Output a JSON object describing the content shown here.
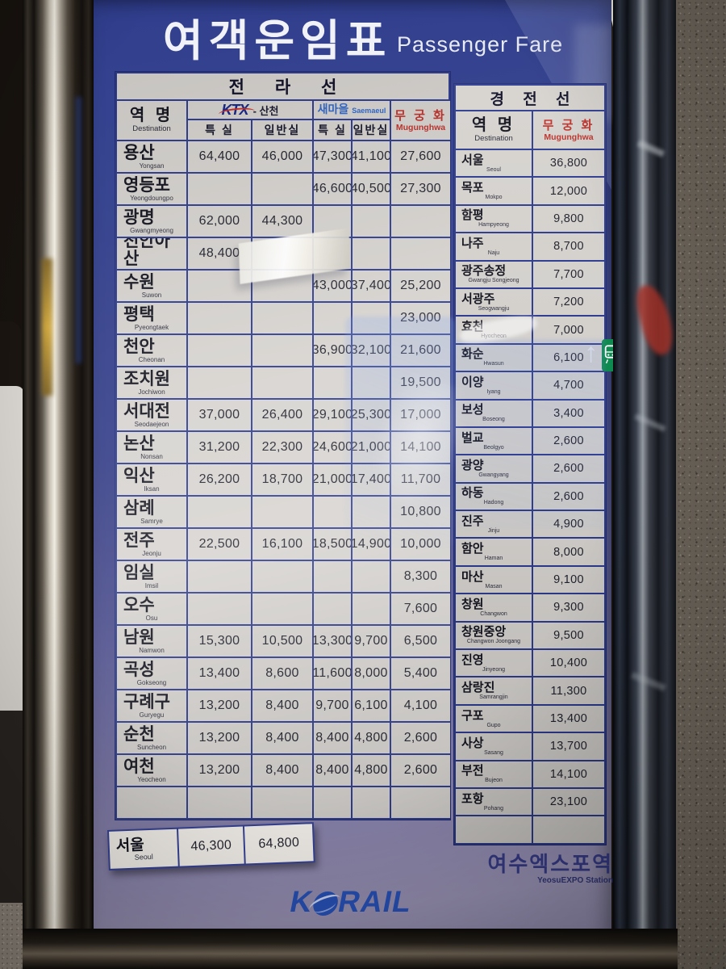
{
  "title": {
    "kr": "여객운임표",
    "en": "Passenger Fare"
  },
  "colors": {
    "board_navy": "#303e8e",
    "grid_navy": "#2e3c90",
    "table_bg": "#d6d3cf",
    "mugunghwa_red": "#bf2f28",
    "saemaeul_blue": "#2f66c8",
    "ktx_navy": "#17268a",
    "korail_blue": "#1d48ac",
    "train_sign_green": "#0e8a50"
  },
  "left_table": {
    "line_name": "전 라 선",
    "headers": {
      "station_kr": "역 명",
      "station_en": "Destination",
      "ktx": "KTX",
      "ktx_suffix": "- 산천",
      "special": "특 실",
      "standard": "일반실",
      "saemaeul_kr": "새마을",
      "saemaeul_en": "Saemaeul",
      "mugunghwa_kr": "무 궁 화",
      "mugunghwa_en": "Mugunghwa"
    },
    "rows": [
      {
        "kr": "용산",
        "en": "Yongsan",
        "f": [
          "64,400",
          "46,000",
          "47,300",
          "41,100",
          "27,600"
        ]
      },
      {
        "kr": "영등포",
        "en": "Yeongdoungpo",
        "f": [
          "",
          "",
          "46,600",
          "40,500",
          "27,300"
        ]
      },
      {
        "kr": "광명",
        "en": "Gwangmyeong",
        "f": [
          "62,000",
          "44,300",
          "",
          "",
          ""
        ]
      },
      {
        "kr": "천안아산",
        "en": "Cheonan Asan",
        "f": [
          "48,400",
          "",
          "",
          "",
          ""
        ]
      },
      {
        "kr": "수원",
        "en": "Suwon",
        "f": [
          "",
          "",
          "43,000",
          "37,400",
          "25,200"
        ]
      },
      {
        "kr": "평택",
        "en": "Pyeongtaek",
        "f": [
          "",
          "",
          "",
          "",
          "23,000"
        ]
      },
      {
        "kr": "천안",
        "en": "Cheonan",
        "f": [
          "",
          "",
          "36,900",
          "32,100",
          "21,600"
        ]
      },
      {
        "kr": "조치원",
        "en": "Jochiwon",
        "f": [
          "",
          "",
          "",
          "",
          "19,500"
        ]
      },
      {
        "kr": "서대전",
        "en": "Seodaejeon",
        "f": [
          "37,000",
          "26,400",
          "29,100",
          "25,300",
          "17,000"
        ]
      },
      {
        "kr": "논산",
        "en": "Nonsan",
        "f": [
          "31,200",
          "22,300",
          "24,600",
          "21,000",
          "14,100"
        ]
      },
      {
        "kr": "익산",
        "en": "Iksan",
        "f": [
          "26,200",
          "18,700",
          "21,000",
          "17,400",
          "11,700"
        ]
      },
      {
        "kr": "삼례",
        "en": "Samrye",
        "f": [
          "",
          "",
          "",
          "",
          "10,800"
        ]
      },
      {
        "kr": "전주",
        "en": "Jeonju",
        "f": [
          "22,500",
          "16,100",
          "18,500",
          "14,900",
          "10,000"
        ]
      },
      {
        "kr": "임실",
        "en": "Imsil",
        "f": [
          "",
          "",
          "",
          "",
          "8,300"
        ]
      },
      {
        "kr": "오수",
        "en": "Osu",
        "f": [
          "",
          "",
          "",
          "",
          "7,600"
        ]
      },
      {
        "kr": "남원",
        "en": "Namwon",
        "f": [
          "15,300",
          "10,500",
          "13,300",
          "9,700",
          "6,500"
        ]
      },
      {
        "kr": "곡성",
        "en": "Gokseong",
        "f": [
          "13,400",
          "8,600",
          "11,600",
          "8,000",
          "5,400"
        ]
      },
      {
        "kr": "구례구",
        "en": "Guryegu",
        "f": [
          "13,200",
          "8,400",
          "9,700",
          "6,100",
          "4,100"
        ]
      },
      {
        "kr": "순천",
        "en": "Suncheon",
        "f": [
          "13,200",
          "8,400",
          "8,400",
          "4,800",
          "2,600"
        ]
      },
      {
        "kr": "여천",
        "en": "Yeocheon",
        "f": [
          "13,200",
          "8,400",
          "8,400",
          "4,800",
          "2,600"
        ]
      },
      {
        "kr": "",
        "en": "",
        "f": [
          "",
          "",
          "",
          "",
          ""
        ]
      }
    ]
  },
  "seoul_strip": {
    "kr": "서울",
    "en": "Seoul",
    "f": [
      "46,300",
      "64,800"
    ]
  },
  "right_table": {
    "line_name": "경 전 선",
    "headers": {
      "station_kr": "역 명",
      "station_en": "Destination",
      "mugunghwa_kr": "무 궁 화",
      "mugunghwa_en": "Mugunghwa"
    },
    "rows": [
      {
        "kr": "서울",
        "en": "Seoul",
        "f": [
          "36,800"
        ]
      },
      {
        "kr": "목포",
        "en": "Mokpo",
        "f": [
          "12,000"
        ]
      },
      {
        "kr": "함평",
        "en": "Hampyeong",
        "f": [
          "9,800"
        ]
      },
      {
        "kr": "나주",
        "en": "Naju",
        "f": [
          "8,700"
        ]
      },
      {
        "kr": "광주송정",
        "en": "Gwangju Songjeong",
        "f": [
          "7,700"
        ]
      },
      {
        "kr": "서광주",
        "en": "Seogwangju",
        "f": [
          "7,200"
        ]
      },
      {
        "kr": "효천",
        "en": "Hyocheon",
        "f": [
          "7,000"
        ]
      },
      {
        "kr": "화순",
        "en": "Hwasun",
        "f": [
          "6,100"
        ]
      },
      {
        "kr": "이양",
        "en": "Iyang",
        "f": [
          "4,700"
        ]
      },
      {
        "kr": "보성",
        "en": "Boseong",
        "f": [
          "3,400"
        ]
      },
      {
        "kr": "벌교",
        "en": "Beolgyo",
        "f": [
          "2,600"
        ]
      },
      {
        "kr": "광양",
        "en": "Gwangyang",
        "f": [
          "2,600"
        ]
      },
      {
        "kr": "하동",
        "en": "Hadong",
        "f": [
          "2,600"
        ]
      },
      {
        "kr": "진주",
        "en": "Jinju",
        "f": [
          "4,900"
        ]
      },
      {
        "kr": "함안",
        "en": "Haman",
        "f": [
          "8,000"
        ]
      },
      {
        "kr": "마산",
        "en": "Masan",
        "f": [
          "9,100"
        ]
      },
      {
        "kr": "창원",
        "en": "Changwon",
        "f": [
          "9,300"
        ]
      },
      {
        "kr": "창원중앙",
        "en": "Changwon Joongang",
        "f": [
          "9,500"
        ]
      },
      {
        "kr": "진영",
        "en": "Jinyeong",
        "f": [
          "10,400"
        ]
      },
      {
        "kr": "삼랑진",
        "en": "Samrangjin",
        "f": [
          "11,300"
        ]
      },
      {
        "kr": "구포",
        "en": "Gupo",
        "f": [
          "13,400"
        ]
      },
      {
        "kr": "사상",
        "en": "Sasang",
        "f": [
          "13,700"
        ]
      },
      {
        "kr": "부전",
        "en": "Bujeon",
        "f": [
          "14,100"
        ]
      },
      {
        "kr": "포항",
        "en": "Pohang",
        "f": [
          "23,100"
        ]
      },
      {
        "kr": "",
        "en": "",
        "f": [
          ""
        ]
      }
    ]
  },
  "footer": {
    "station_kr": "여수엑스포역",
    "station_en": "YeosuEXPO Station",
    "logo_k": "K",
    "logo_rail": "RAIL"
  },
  "signs": {
    "up_arrow": "↑"
  }
}
